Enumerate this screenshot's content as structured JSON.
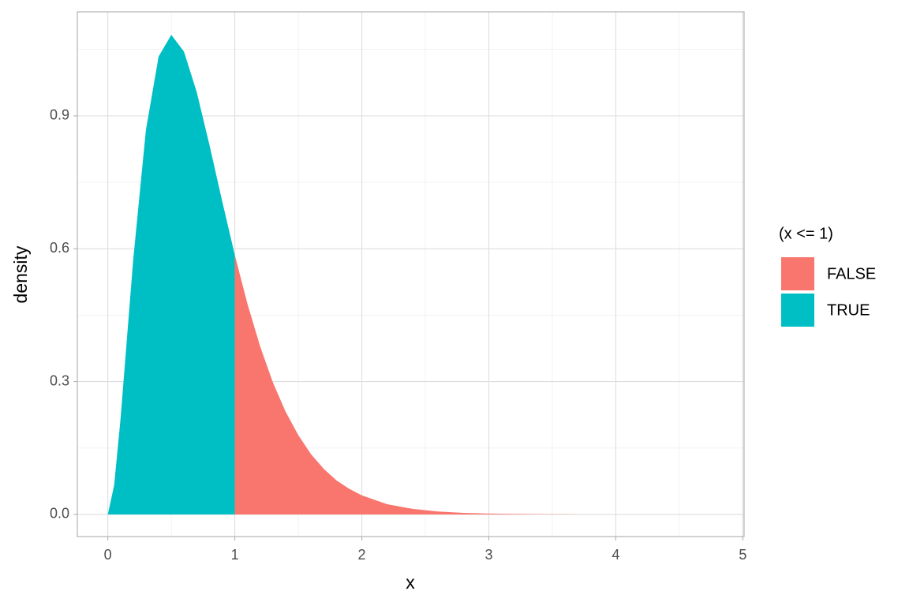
{
  "chart_data": {
    "type": "area",
    "x_label": "x",
    "y_label": "density",
    "legend_title": "(x <= 1)",
    "series": [
      {
        "name": "FALSE",
        "color": "#F8766D",
        "x": [
          1.0,
          1.1,
          1.2,
          1.3,
          1.4,
          1.5,
          1.6,
          1.7,
          1.8,
          1.9,
          2.0,
          2.2,
          2.4,
          2.6,
          2.8,
          3.0,
          3.4,
          3.7
        ],
        "values": [
          0.586,
          0.475,
          0.379,
          0.298,
          0.232,
          0.179,
          0.136,
          0.103,
          0.077,
          0.058,
          0.043,
          0.023,
          0.0125,
          0.0066,
          0.0034,
          0.0018,
          0.0005,
          0.0001
        ]
      },
      {
        "name": "TRUE",
        "color": "#00BFC4",
        "x": [
          0,
          0.05,
          0.1,
          0.15,
          0.2,
          0.3,
          0.4,
          0.5,
          0.6,
          0.7,
          0.8,
          0.9,
          1.0
        ],
        "values": [
          0,
          0.066,
          0.215,
          0.395,
          0.575,
          0.868,
          1.034,
          1.083,
          1.045,
          0.954,
          0.835,
          0.708,
          0.586
        ]
      }
    ],
    "xlim": [
      -0.24,
      5.01
    ],
    "xticks": [
      0,
      1,
      2,
      3,
      4,
      5
    ],
    "ylim": [
      -0.05,
      1.135
    ],
    "yticks": [
      {
        "value": 0,
        "label": "0.0"
      },
      0.3,
      0.6,
      0.9
    ],
    "grid": true
  }
}
